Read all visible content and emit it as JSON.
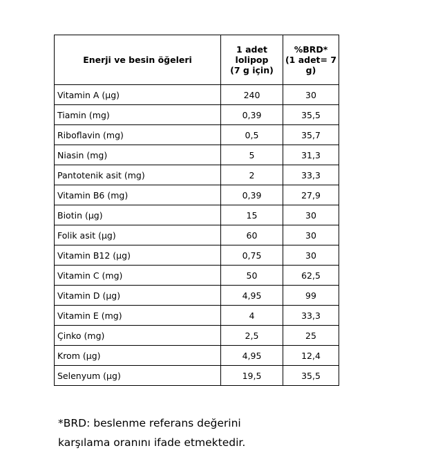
{
  "table": {
    "headers": {
      "name": "Enerji ve besin öğeleri",
      "amount": [
        "1 adet",
        "lolipop",
        "(7 g için)"
      ],
      "brd": [
        "%BRD*",
        "(1 adet= 7",
        "g)"
      ]
    },
    "rows": [
      {
        "name": "Vitamin A (µg)",
        "amount": "240",
        "brd": "30"
      },
      {
        "name": "Tiamin (mg)",
        "amount": "0,39",
        "brd": "35,5"
      },
      {
        "name": "Riboflavin (mg)",
        "amount": "0,5",
        "brd": "35,7"
      },
      {
        "name": "Niasin (mg)",
        "amount": "5",
        "brd": "31,3"
      },
      {
        "name": "Pantotenik asit (mg)",
        "amount": "2",
        "brd": "33,3"
      },
      {
        "name": "Vitamin B6 (mg)",
        "amount": "0,39",
        "brd": "27,9"
      },
      {
        "name": "Biotin (µg)",
        "amount": "15",
        "brd": "30"
      },
      {
        "name": "Folik asit (µg)",
        "amount": "60",
        "brd": "30"
      },
      {
        "name": "Vitamin B12 (µg)",
        "amount": "0,75",
        "brd": "30"
      },
      {
        "name": "Vitamin C (mg)",
        "amount": "50",
        "brd": "62,5"
      },
      {
        "name": "Vitamin D (µg)",
        "amount": "4,95",
        "brd": "99"
      },
      {
        "name": "Vitamin E (mg)",
        "amount": "4",
        "brd": "33,3"
      },
      {
        "name": "Çinko (mg)",
        "amount": "2,5",
        "brd": "25"
      },
      {
        "name": "Krom (µg)",
        "amount": "4,95",
        "brd": "12,4"
      },
      {
        "name": "Selenyum (µg)",
        "amount": "19,5",
        "brd": "35,5"
      }
    ]
  },
  "footnote": {
    "line1": "*BRD: beslenme referans değerini",
    "line2": "karşılama oranını ifade etmektedir."
  }
}
